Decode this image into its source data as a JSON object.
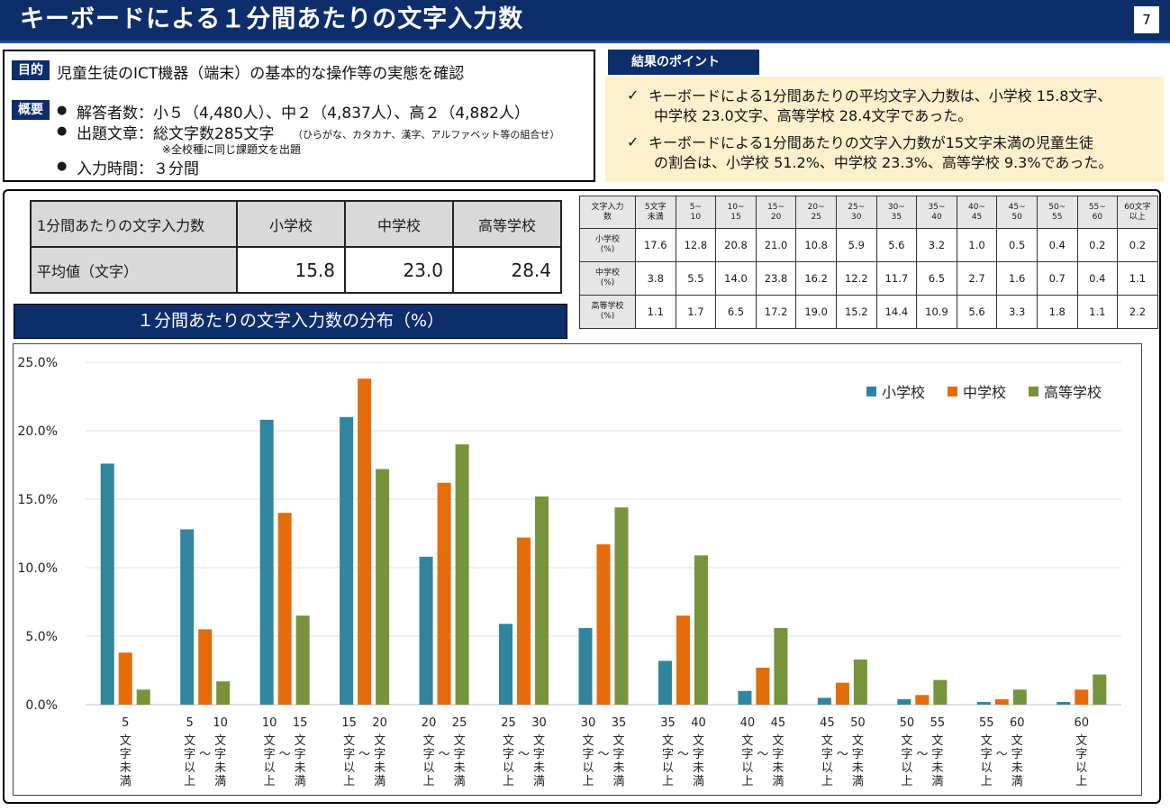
{
  "header": {
    "title": "キーボードによる１分間あたりの文字入力数",
    "page": "7"
  },
  "purpose": {
    "purpose_tag": "目的",
    "purpose_text": "児童生徒のICT機器（端末）の基本的な操作等の実態を確認",
    "overview_tag": "概要",
    "items": [
      "解答者数：小５（4,480人）、中２（4,837人）、高２（4,882人）",
      "出題文章：総文字数285文字",
      "入力時間：３分間"
    ],
    "text_note": "（ひらがな、カタカナ、漢字、アルファベット等の組合せ）",
    "same_text_note": "※全校種に同じ課題文を出題"
  },
  "points": {
    "title": "結果のポイント",
    "items": [
      {
        "line1": "キーボードによる1分間あたりの平均文字入力数は、小学校 15.8文字、",
        "line2": "中学校 23.0文字、高等学校 28.4文字であった。"
      },
      {
        "line1": "キーボードによる1分間あたりの文字入力数が15文字未満の児童生徒",
        "line2": "の割合は、小学校 51.2%、中学校 23.3%、高等学校 9.3%であった。"
      }
    ]
  },
  "avg_table": {
    "header_label": "1分間あたりの文字入力数",
    "columns": [
      "小学校",
      "中学校",
      "高等学校"
    ],
    "row_label": "平均値（文字）",
    "values": [
      "15.8",
      "23.0",
      "28.4"
    ]
  },
  "dist_table": {
    "corner": [
      "文字入力",
      "数"
    ],
    "headers": [
      [
        "5文字",
        "未満"
      ],
      [
        "5~",
        "10"
      ],
      [
        "10~",
        "15"
      ],
      [
        "15~",
        "20"
      ],
      [
        "20~",
        "25"
      ],
      [
        "25~",
        "30"
      ],
      [
        "30~",
        "35"
      ],
      [
        "35~",
        "40"
      ],
      [
        "40~",
        "45"
      ],
      [
        "45~",
        "50"
      ],
      [
        "50~",
        "55"
      ],
      [
        "55~",
        "60"
      ],
      [
        "60文字",
        "以上"
      ]
    ],
    "rows": [
      {
        "label": [
          "小学校",
          "(%)"
        ],
        "values": [
          "17.6",
          "12.8",
          "20.8",
          "21.0",
          "10.8",
          "5.9",
          "5.6",
          "3.2",
          "1.0",
          "0.5",
          "0.4",
          "0.2",
          "0.2"
        ]
      },
      {
        "label": [
          "中学校",
          "(%)"
        ],
        "values": [
          "3.8",
          "5.5",
          "14.0",
          "23.8",
          "16.2",
          "12.2",
          "11.7",
          "6.5",
          "2.7",
          "1.6",
          "0.7",
          "0.4",
          "1.1"
        ]
      },
      {
        "label": [
          "高等学校",
          "(%)"
        ],
        "values": [
          "1.1",
          "1.7",
          "6.5",
          "17.2",
          "19.0",
          "15.2",
          "14.4",
          "10.9",
          "5.6",
          "3.3",
          "1.8",
          "1.1",
          "2.2"
        ]
      }
    ]
  },
  "chart_title": "１分間あたりの文字入力数の分布（%）",
  "colors": {
    "elementary": "#31859c",
    "junior": "#e46c0a",
    "high": "#77933c",
    "navy": "#0d2d6b"
  },
  "chart_data": {
    "type": "bar",
    "ylim": [
      0,
      25
    ],
    "yticks": [
      "0.0%",
      "5.0%",
      "10.0%",
      "15.0%",
      "20.0%",
      "25.0%"
    ],
    "grid": true,
    "legend_position": "top-right",
    "categories": [
      {
        "a": "",
        "b": "5",
        "va": "",
        "vb": "文字未満"
      },
      {
        "a": "5",
        "b": "10",
        "va": "文字以上",
        "vb": "文字未満"
      },
      {
        "a": "10",
        "b": "15",
        "va": "文字以上",
        "vb": "文字未満"
      },
      {
        "a": "15",
        "b": "20",
        "va": "文字以上",
        "vb": "文字未満"
      },
      {
        "a": "20",
        "b": "25",
        "va": "文字以上",
        "vb": "文字未満"
      },
      {
        "a": "25",
        "b": "30",
        "va": "文字以上",
        "vb": "文字未満"
      },
      {
        "a": "30",
        "b": "35",
        "va": "文字以上",
        "vb": "文字未満"
      },
      {
        "a": "35",
        "b": "40",
        "va": "文字以上",
        "vb": "文字未満"
      },
      {
        "a": "40",
        "b": "45",
        "va": "文字以上",
        "vb": "文字未満"
      },
      {
        "a": "45",
        "b": "50",
        "va": "文字以上",
        "vb": "文字未満"
      },
      {
        "a": "50",
        "b": "55",
        "va": "文字以上",
        "vb": "文字未満"
      },
      {
        "a": "55",
        "b": "60",
        "va": "文字以上",
        "vb": "文字未満"
      },
      {
        "a": "60",
        "b": "",
        "va": "文字以上",
        "vb": ""
      }
    ],
    "series": [
      {
        "name": "小学校",
        "color": "#31859c",
        "values": [
          17.6,
          12.8,
          20.8,
          21.0,
          10.8,
          5.9,
          5.6,
          3.2,
          1.0,
          0.5,
          0.4,
          0.2,
          0.2
        ]
      },
      {
        "name": "中学校",
        "color": "#e46c0a",
        "values": [
          3.8,
          5.5,
          14.0,
          23.8,
          16.2,
          12.2,
          11.7,
          6.5,
          2.7,
          1.6,
          0.7,
          0.4,
          1.1
        ]
      },
      {
        "name": "高等学校",
        "color": "#77933c",
        "values": [
          1.1,
          1.7,
          6.5,
          17.2,
          19.0,
          15.2,
          14.4,
          10.9,
          5.6,
          3.3,
          1.8,
          1.1,
          2.2
        ]
      }
    ]
  }
}
